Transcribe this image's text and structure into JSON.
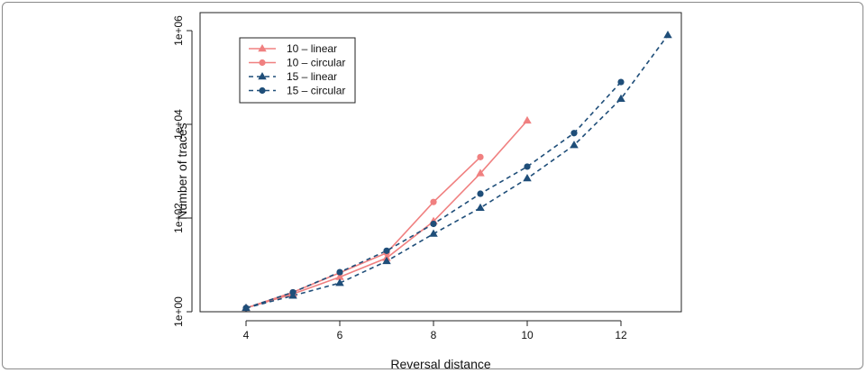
{
  "chart_data": {
    "type": "line",
    "title": "",
    "xlabel": "Reversal distance",
    "ylabel": "Number of traces",
    "x_ticks": [
      4,
      6,
      8,
      10,
      12
    ],
    "y_ticks": [
      1,
      100,
      10000,
      1000000
    ],
    "y_tick_labels": [
      "1e+00",
      "1e+02",
      "1e+04",
      "1e+06"
    ],
    "y_scale": "log",
    "xlim": [
      4,
      13
    ],
    "ylim": [
      1,
      1000000
    ],
    "legend_position": "top-left",
    "grid": false,
    "series": [
      {
        "name": "10 – linear",
        "color": "#F08080",
        "line_style": "solid",
        "marker": "triangle",
        "x": [
          4,
          5,
          6,
          7,
          8,
          9,
          10
        ],
        "y": [
          1.2,
          2.4,
          5.5,
          14,
          85,
          900,
          12000
        ]
      },
      {
        "name": "10 – circular",
        "color": "#F08080",
        "line_style": "solid",
        "marker": "circle",
        "x": [
          4,
          5,
          6,
          7,
          8,
          9
        ],
        "y": [
          1.2,
          2.6,
          6.8,
          18,
          220,
          2000
        ]
      },
      {
        "name": "15 – linear",
        "color": "#1F4E79",
        "line_style": "dashed",
        "marker": "triangle",
        "x": [
          4,
          5,
          6,
          7,
          8,
          9,
          10,
          11,
          12,
          13
        ],
        "y": [
          1.2,
          2.2,
          4.1,
          12,
          46,
          165,
          700,
          3600,
          35000,
          800000
        ]
      },
      {
        "name": "15 – circular",
        "color": "#1F4E79",
        "line_style": "dashed",
        "marker": "circle",
        "x": [
          4,
          5,
          6,
          7,
          8,
          9,
          10,
          11,
          12
        ],
        "y": [
          1.2,
          2.6,
          7.0,
          20,
          75,
          330,
          1250,
          6500,
          80000
        ]
      }
    ]
  }
}
